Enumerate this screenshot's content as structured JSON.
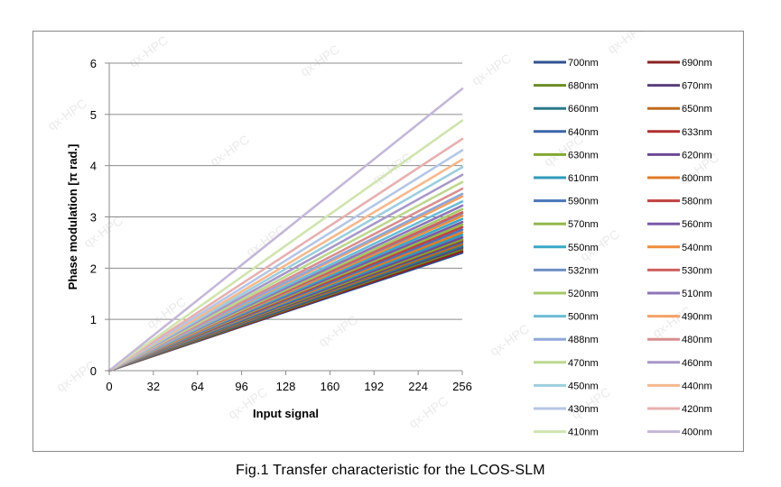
{
  "caption": "Fig.1 Transfer characteristic for the LCOS-SLM",
  "watermark": "qx-HPC",
  "chart_data": {
    "type": "line",
    "title": "",
    "xlabel": "Input signal",
    "ylabel": "Phase modulation [π rad.]",
    "xlim": [
      0,
      256
    ],
    "ylim": [
      0,
      6
    ],
    "xticks": [
      0,
      32,
      64,
      96,
      128,
      160,
      192,
      224,
      256
    ],
    "yticks": [
      0,
      1,
      2,
      3,
      4,
      5,
      6
    ],
    "grid": "horizontal",
    "legend_position": "right",
    "x": [
      0,
      256
    ],
    "series": [
      {
        "name": "700nm",
        "color": "#2f4f8f",
        "values": [
          0,
          2.3
        ]
      },
      {
        "name": "690nm",
        "color": "#8b2323",
        "values": [
          0,
          2.33
        ]
      },
      {
        "name": "680nm",
        "color": "#6b8e23",
        "values": [
          0,
          2.37
        ]
      },
      {
        "name": "670nm",
        "color": "#5b3f7a",
        "values": [
          0,
          2.4
        ]
      },
      {
        "name": "660nm",
        "color": "#2b7a8a",
        "values": [
          0,
          2.43
        ]
      },
      {
        "name": "650nm",
        "color": "#c06a1e",
        "values": [
          0,
          2.47
        ]
      },
      {
        "name": "640nm",
        "color": "#3b64a8",
        "values": [
          0,
          2.51
        ]
      },
      {
        "name": "633nm",
        "color": "#b03030",
        "values": [
          0,
          2.54
        ]
      },
      {
        "name": "630nm",
        "color": "#82a832",
        "values": [
          0,
          2.56
        ]
      },
      {
        "name": "620nm",
        "color": "#6e4a96",
        "values": [
          0,
          2.6
        ]
      },
      {
        "name": "610nm",
        "color": "#2f9ab8",
        "values": [
          0,
          2.65
        ]
      },
      {
        "name": "600nm",
        "color": "#e07b26",
        "values": [
          0,
          2.7
        ]
      },
      {
        "name": "590nm",
        "color": "#4a76b8",
        "values": [
          0,
          2.75
        ]
      },
      {
        "name": "580nm",
        "color": "#c04040",
        "values": [
          0,
          2.8
        ]
      },
      {
        "name": "570nm",
        "color": "#94b84a",
        "values": [
          0,
          2.85
        ]
      },
      {
        "name": "560nm",
        "color": "#7a5aa6",
        "values": [
          0,
          2.9
        ]
      },
      {
        "name": "550nm",
        "color": "#3aa8c6",
        "values": [
          0,
          2.96
        ]
      },
      {
        "name": "540nm",
        "color": "#ef8c3c",
        "values": [
          0,
          3.02
        ]
      },
      {
        "name": "532nm",
        "color": "#6d8fc4",
        "values": [
          0,
          3.07
        ]
      },
      {
        "name": "530nm",
        "color": "#d06060",
        "values": [
          0,
          3.09
        ]
      },
      {
        "name": "520nm",
        "color": "#a6c86a",
        "values": [
          0,
          3.15
        ]
      },
      {
        "name": "510nm",
        "color": "#8e76b8",
        "values": [
          0,
          3.22
        ]
      },
      {
        "name": "500nm",
        "color": "#6cbcd6",
        "values": [
          0,
          3.3
        ]
      },
      {
        "name": "490nm",
        "color": "#f4a266",
        "values": [
          0,
          3.4
        ]
      },
      {
        "name": "488nm",
        "color": "#8fa8d8",
        "values": [
          0,
          3.45
        ]
      },
      {
        "name": "480nm",
        "color": "#d88e8e",
        "values": [
          0,
          3.55
        ]
      },
      {
        "name": "470nm",
        "color": "#bcd88e",
        "values": [
          0,
          3.68
        ]
      },
      {
        "name": "460nm",
        "color": "#a898c8",
        "values": [
          0,
          3.82
        ]
      },
      {
        "name": "450nm",
        "color": "#9ccede",
        "values": [
          0,
          3.97
        ]
      },
      {
        "name": "440nm",
        "color": "#f6b88e",
        "values": [
          0,
          4.12
        ]
      },
      {
        "name": "430nm",
        "color": "#b4c6e6",
        "values": [
          0,
          4.3
        ]
      },
      {
        "name": "420nm",
        "color": "#e6b0b0",
        "values": [
          0,
          4.52
        ]
      },
      {
        "name": "410nm",
        "color": "#d0e4b0",
        "values": [
          0,
          4.88
        ]
      },
      {
        "name": "400nm",
        "color": "#c4b8d8",
        "values": [
          0,
          5.5
        ]
      }
    ]
  }
}
